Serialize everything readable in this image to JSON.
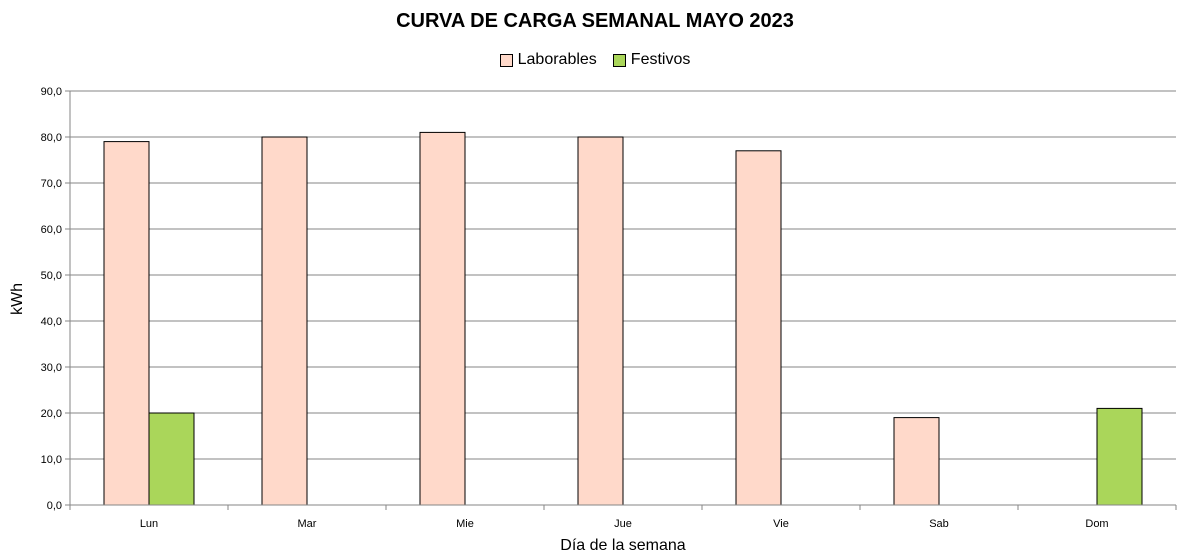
{
  "chart_data": {
    "type": "bar",
    "title": "CURVA DE CARGA SEMANAL MAYO 2023",
    "xlabel": "Día de la semana",
    "ylabel": "kWh",
    "ylim": [
      0,
      90
    ],
    "yticks": [
      "0,0",
      "10,0",
      "20,0",
      "30,0",
      "40,0",
      "50,0",
      "60,0",
      "70,0",
      "80,0",
      "90,0"
    ],
    "categories": [
      "Lun",
      "Mar",
      "Mie",
      "Jue",
      "Vie",
      "Sab",
      "Dom"
    ],
    "series": [
      {
        "name": "Laborables",
        "color": "#FFD9CA",
        "values": [
          79,
          80,
          81,
          80,
          77,
          19,
          null
        ]
      },
      {
        "name": "Festivos",
        "color": "#AAD65A",
        "values": [
          20,
          null,
          null,
          null,
          null,
          null,
          21
        ]
      }
    ],
    "grid": true,
    "legend": "top"
  }
}
